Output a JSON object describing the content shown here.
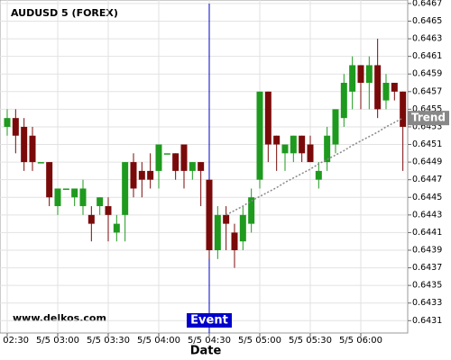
{
  "chart_data": {
    "type": "candlestick",
    "title": "AUDUSD 5 (FOREX)",
    "watermark": "www.delkos.com",
    "x_label": "Date",
    "categories": [
      "5/5 02:30",
      null,
      null,
      null,
      null,
      null,
      "5/5 03:00",
      null,
      null,
      null,
      null,
      null,
      "5/5 03:30",
      null,
      null,
      null,
      null,
      null,
      "5/5 04:00",
      null,
      null,
      null,
      null,
      null,
      "5/5 04:30",
      null,
      null,
      null,
      null,
      null,
      "5/5 05:00",
      null,
      null,
      null,
      null,
      null,
      "5/5 05:30",
      null,
      null,
      null,
      null,
      null,
      "5/5 06:00",
      null,
      null,
      null,
      null,
      null
    ],
    "open": [
      0.6453,
      0.6454,
      0.6453,
      0.6452,
      0.6449,
      0.6449,
      0.6444,
      0.6446,
      0.6445,
      0.6444,
      0.6443,
      0.6444,
      0.6444,
      0.6441,
      0.6443,
      0.6449,
      0.6448,
      0.6448,
      0.6448,
      0.645,
      0.645,
      0.6451,
      0.6448,
      0.6449,
      0.6447,
      0.6439,
      0.6443,
      0.6441,
      0.644,
      0.6442,
      0.6447,
      0.6457,
      0.6452,
      0.645,
      0.645,
      0.6452,
      0.6451,
      0.6447,
      0.6449,
      0.6451,
      0.6454,
      0.6457,
      0.646,
      0.6458,
      0.646,
      0.6456,
      0.6458,
      0.6457
    ],
    "high": [
      0.6455,
      0.6455,
      0.6454,
      0.6453,
      0.6449,
      0.6449,
      0.6446,
      0.6446,
      0.6446,
      0.6447,
      0.6444,
      0.6445,
      0.6445,
      0.6443,
      0.6449,
      0.645,
      0.6449,
      0.645,
      0.6451,
      0.645,
      0.645,
      0.6451,
      0.6449,
      0.6449,
      0.6447,
      0.6444,
      0.6444,
      0.6442,
      0.6444,
      0.6446,
      0.6457,
      0.6457,
      0.6452,
      0.6451,
      0.6452,
      0.6452,
      0.6452,
      0.6449,
      0.6453,
      0.6455,
      0.6459,
      0.6461,
      0.646,
      0.6461,
      0.6463,
      0.6459,
      0.6458,
      0.6457
    ],
    "low": [
      0.6452,
      0.645,
      0.6448,
      0.6448,
      0.6449,
      0.6444,
      0.6443,
      0.6446,
      0.6444,
      0.6443,
      0.644,
      0.6443,
      0.644,
      0.644,
      0.644,
      0.6445,
      0.6445,
      0.6446,
      0.6446,
      0.645,
      0.6447,
      0.6446,
      0.6447,
      0.6444,
      0.6438,
      0.6438,
      0.6439,
      0.6437,
      0.6439,
      0.6441,
      0.6446,
      0.6449,
      0.6448,
      0.6448,
      0.6449,
      0.6449,
      0.6449,
      0.6446,
      0.6448,
      0.645,
      0.6453,
      0.6455,
      0.6455,
      0.6455,
      0.6454,
      0.6455,
      0.6456,
      0.6448
    ],
    "close": [
      0.6454,
      0.6452,
      0.6449,
      0.6449,
      0.6449,
      0.6445,
      0.6446,
      0.6446,
      0.6446,
      0.6446,
      0.6442,
      0.6445,
      0.6443,
      0.6442,
      0.6449,
      0.6446,
      0.6447,
      0.6447,
      0.6451,
      0.645,
      0.6448,
      0.6448,
      0.6449,
      0.6448,
      0.6439,
      0.6443,
      0.6442,
      0.6439,
      0.6443,
      0.6445,
      0.6457,
      0.6451,
      0.6451,
      0.6451,
      0.6452,
      0.645,
      0.6449,
      0.6448,
      0.6452,
      0.6455,
      0.6458,
      0.646,
      0.6458,
      0.646,
      0.6455,
      0.6458,
      0.6457,
      0.6453
    ],
    "up_color": "#1e9a1e",
    "down_color": "#7a0a0a",
    "trend": {
      "name": "Trend",
      "color": "#888888",
      "values": [
        null,
        null,
        null,
        null,
        null,
        null,
        null,
        null,
        null,
        null,
        null,
        null,
        null,
        null,
        null,
        null,
        null,
        null,
        null,
        null,
        null,
        null,
        null,
        null,
        null,
        null,
        0.6443,
        0.64435,
        0.6444,
        0.64446,
        0.64451,
        0.64456,
        0.64461,
        0.64467,
        0.64472,
        0.64477,
        0.64482,
        0.64488,
        0.64493,
        0.64498,
        0.64503,
        0.64509,
        0.64514,
        0.64519,
        0.64524,
        0.6453,
        0.64535,
        0.6454
      ]
    },
    "event": {
      "label": "Event",
      "at": "5/5 04:30",
      "color": "#0000cc"
    },
    "ylim": [
      0.64296,
      0.64674
    ],
    "yticks": [
      0.6431,
      0.6433,
      0.6435,
      0.6437,
      0.6439,
      0.6441,
      0.6443,
      0.6445,
      0.6447,
      0.6449,
      0.6451,
      0.6453,
      0.6455,
      0.6457,
      0.6459,
      0.6461,
      0.6463,
      0.6465,
      0.6467
    ],
    "grid": true
  }
}
